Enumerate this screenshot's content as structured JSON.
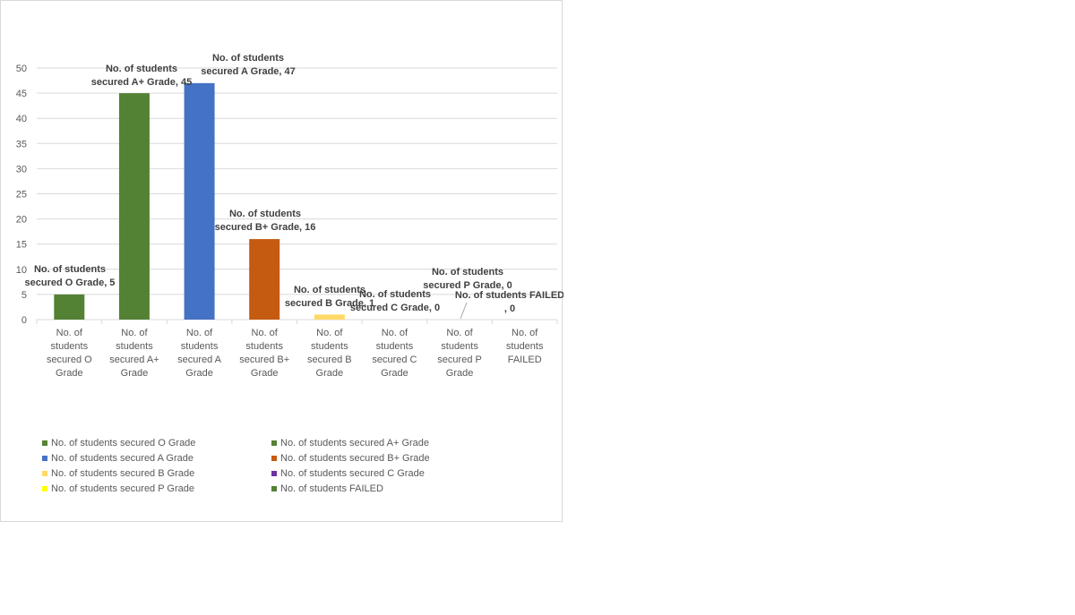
{
  "chart_data": {
    "type": "bar",
    "categories": [
      [
        "No. of",
        "students",
        "secured O",
        "Grade"
      ],
      [
        "No. of",
        "students",
        "secured A+",
        "Grade"
      ],
      [
        "No. of",
        "students",
        "secured A",
        "Grade"
      ],
      [
        "No. of",
        "students",
        "secured B+",
        "Grade"
      ],
      [
        "No. of",
        "students",
        "secured B",
        "Grade"
      ],
      [
        "No. of",
        "students",
        "secured C",
        "Grade"
      ],
      [
        "No. of",
        "students",
        "secured  P",
        "Grade"
      ],
      [
        "No. of",
        "students",
        "FAILED"
      ]
    ],
    "values": [
      5,
      45,
      47,
      16,
      1,
      0,
      0,
      0
    ],
    "colors": [
      "#548235",
      "#548235",
      "#4472c4",
      "#c55a11",
      "#ffd966",
      "#7030a0",
      "#ffff00",
      "#548235"
    ],
    "data_labels": [
      [
        "No. of students",
        "secured O Grade, 5"
      ],
      [
        "No. of students",
        "secured A+ Grade, 45"
      ],
      [
        "No. of students",
        "secured A Grade, 47"
      ],
      [
        "No. of students",
        "secured B+ Grade, 16"
      ],
      [
        "No. of students",
        "secured  B Grade, 1"
      ],
      [
        "No. of students",
        "secured C Grade, 0"
      ],
      [
        "No. of students",
        "secured  P Grade, 0"
      ],
      [
        "No. of students  FAILED",
        ", 0"
      ]
    ],
    "y_ticks": [
      "0",
      "5",
      "10",
      "15",
      "20",
      "25",
      "30",
      "35",
      "40",
      "45",
      "50"
    ],
    "ylim": [
      0,
      50
    ],
    "grid": true,
    "legend_position": "bottom",
    "legend": [
      {
        "label": "No. of students secured O Grade",
        "color": "#548235"
      },
      {
        "label": "No. of students secured A+ Grade",
        "color": "#548235"
      },
      {
        "label": "No. of students secured A Grade",
        "color": "#4472c4"
      },
      {
        "label": "No. of students secured B+ Grade",
        "color": "#c55a11"
      },
      {
        "label": "No. of students secured B Grade",
        "color": "#ffd966"
      },
      {
        "label": "No. of students secured C Grade",
        "color": "#7030a0"
      },
      {
        "label": "No. of students secured  P Grade",
        "color": "#ffff00"
      },
      {
        "label": "No. of students FAILED",
        "color": "#548235"
      }
    ]
  }
}
